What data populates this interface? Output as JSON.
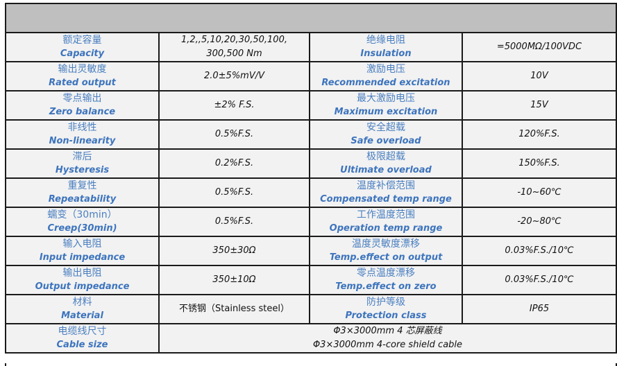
{
  "rows": [
    {
      "l_cn": "额定容量",
      "l_en": "Capacity",
      "l_val": "1,2,,5,10,20,30,50,100,\n300,500 Nm",
      "r_cn": "绝缘电阻",
      "r_en": "Insulation",
      "r_val": "=5000MΩ/100VDC"
    },
    {
      "l_cn": "输出灵敏度",
      "l_en": "Rated output",
      "l_val": "2.0±5%mV/V",
      "r_cn": "激励电压",
      "r_en": "Recommended excitation",
      "r_val": "10V"
    },
    {
      "l_cn": "零点输出",
      "l_en": "Zero balance",
      "l_val": "±2% F.S.",
      "r_cn": "最大激励电压",
      "r_en": "Maximum excitation",
      "r_val": "15V"
    },
    {
      "l_cn": "非线性",
      "l_en": "Non-linearity",
      "l_val": "0.5%F.S.",
      "r_cn": "安全超载",
      "r_en": "Safe overload",
      "r_val": "120%F.S."
    },
    {
      "l_cn": "滞后",
      "l_en": "Hysteresis",
      "l_val": "0.2%F.S.",
      "r_cn": "极限超载",
      "r_en": "Ultimate overload",
      "r_val": "150%F.S."
    },
    {
      "l_cn": "重复性",
      "l_en": "Repeatability",
      "l_val": "0.5%F.S.",
      "r_cn": "温度补偿范围",
      "r_en": "Compensated temp range",
      "r_val": "-10~60℃"
    },
    {
      "l_cn": "蠕变（30min）",
      "l_en": "Creep(30min)",
      "l_val": "0.5%F.S.",
      "r_cn": "工作温度范围",
      "r_en": "Operation temp range",
      "r_val": "-20~80℃"
    },
    {
      "l_cn": "输入电阻",
      "l_en": "Input impedance",
      "l_val": "350±30Ω",
      "r_cn": "温度灵敏度漂移",
      "r_en": "Temp.effect on output",
      "r_val": "0.03%F.S./10℃"
    },
    {
      "l_cn": "输出电阻",
      "l_en": "Output impedance",
      "l_val": "350±10Ω",
      "r_cn": "零点温度漂移",
      "r_en": "Temp.effect on zero",
      "r_val": "0.03%F.S./10℃"
    },
    {
      "l_cn": "材料",
      "l_en": "Material",
      "l_val": "不锈钢（Stainless steel）",
      "r_cn": "防护等级",
      "r_en": "Protection class",
      "r_val": "IP65"
    }
  ],
  "cable": {
    "cn": "电缆线尺寸",
    "en": "Cable size",
    "val_cn": "Φ3×3000mm 4 芯屏蔽线",
    "val_en": "Φ3×3000mm 4-core shield cable"
  }
}
